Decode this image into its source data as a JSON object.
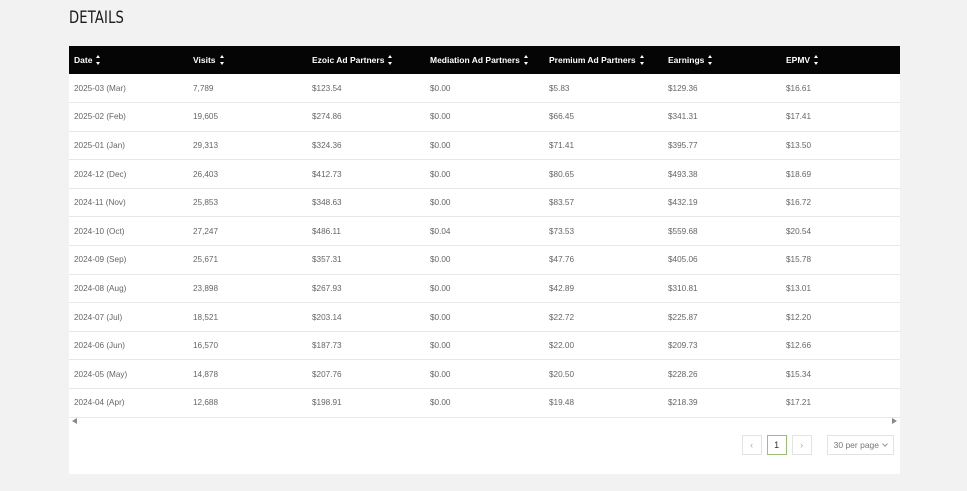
{
  "page": {
    "title": "DETAILS"
  },
  "table": {
    "columns": [
      "Date",
      "Visits",
      "Ezoic Ad Partners",
      "Mediation Ad Partners",
      "Premium Ad Partners",
      "Earnings",
      "EPMV"
    ],
    "rows": [
      [
        "2025-03 (Mar)",
        "7,789",
        "$123.54",
        "$0.00",
        "$5.83",
        "$129.36",
        "$16.61"
      ],
      [
        "2025-02 (Feb)",
        "19,605",
        "$274.86",
        "$0.00",
        "$66.45",
        "$341.31",
        "$17.41"
      ],
      [
        "2025-01 (Jan)",
        "29,313",
        "$324.36",
        "$0.00",
        "$71.41",
        "$395.77",
        "$13.50"
      ],
      [
        "2024-12 (Dec)",
        "26,403",
        "$412.73",
        "$0.00",
        "$80.65",
        "$493.38",
        "$18.69"
      ],
      [
        "2024-11 (Nov)",
        "25,853",
        "$348.63",
        "$0.00",
        "$83.57",
        "$432.19",
        "$16.72"
      ],
      [
        "2024-10 (Oct)",
        "27,247",
        "$486.11",
        "$0.04",
        "$73.53",
        "$559.68",
        "$20.54"
      ],
      [
        "2024-09 (Sep)",
        "25,671",
        "$357.31",
        "$0.00",
        "$47.76",
        "$405.06",
        "$15.78"
      ],
      [
        "2024-08 (Aug)",
        "23,898",
        "$267.93",
        "$0.00",
        "$42.89",
        "$310.81",
        "$13.01"
      ],
      [
        "2024-07 (Jul)",
        "18,521",
        "$203.14",
        "$0.00",
        "$22.72",
        "$225.87",
        "$12.20"
      ],
      [
        "2024-06 (Jun)",
        "16,570",
        "$187.73",
        "$0.00",
        "$22.00",
        "$209.73",
        "$12.66"
      ],
      [
        "2024-05 (May)",
        "14,878",
        "$207.76",
        "$0.00",
        "$20.50",
        "$228.26",
        "$15.34"
      ],
      [
        "2024-04 (Apr)",
        "12,688",
        "$198.91",
        "$0.00",
        "$19.48",
        "$218.39",
        "$17.21"
      ]
    ]
  },
  "pagination": {
    "prev_icon": "‹",
    "current_page": "1",
    "next_icon": "›",
    "per_page": "30 per page"
  },
  "colors": {
    "header_bg": "#050505",
    "page_bg": "#f2f2f2",
    "active_page_border": "#9bbf7a"
  }
}
